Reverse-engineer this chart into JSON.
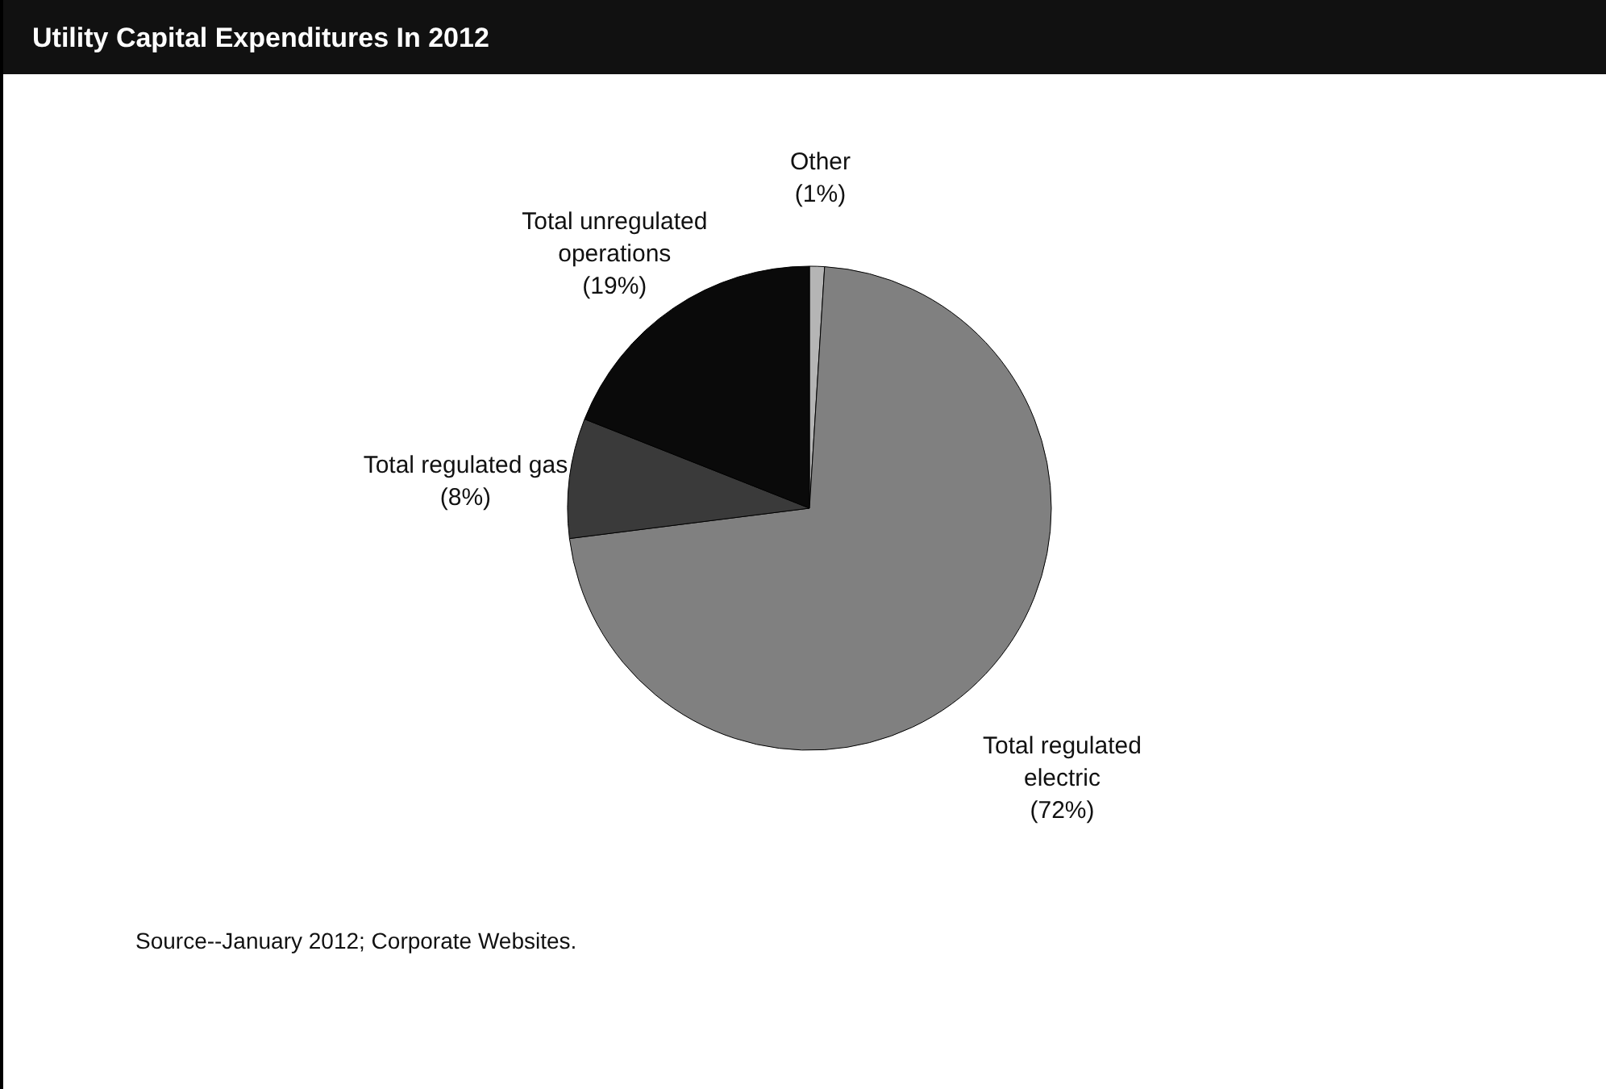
{
  "chart_data": {
    "type": "pie",
    "title": "Utility Capital Expenditures In 2012",
    "categories": [
      "Other",
      "Total regulated electric",
      "Total regulated gas",
      "Total unregulated operations"
    ],
    "values": [
      1,
      72,
      8,
      19
    ],
    "colors": [
      "#b5b5b5",
      "#808080",
      "#3a3a3a",
      "#0a0a0a"
    ],
    "value_labels": [
      "(1%)",
      "(72%)",
      "(8%)",
      "(19%)"
    ],
    "legend": false,
    "annotations": [
      "Source--January 2012; Corporate Websites."
    ]
  }
}
